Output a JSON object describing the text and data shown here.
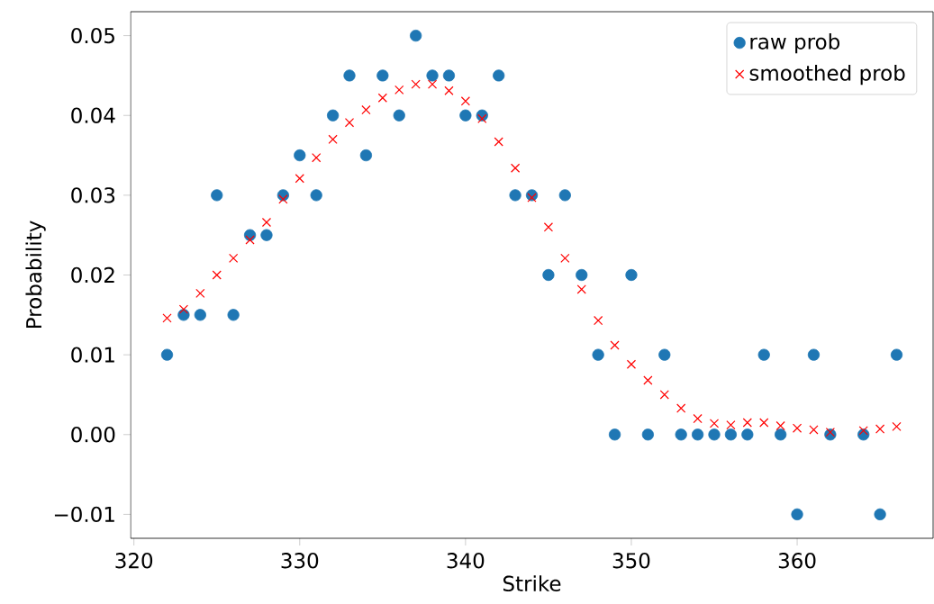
{
  "chart_data": {
    "type": "scatter",
    "xlabel": "Strike",
    "ylabel": "Probability",
    "x": [
      322,
      323,
      324,
      325,
      326,
      327,
      328,
      329,
      330,
      331,
      332,
      333,
      334,
      335,
      336,
      337,
      338,
      339,
      340,
      341,
      342,
      343,
      344,
      345,
      346,
      347,
      348,
      349,
      350,
      351,
      352,
      353,
      354,
      355,
      356,
      357,
      358,
      359,
      360,
      361,
      362,
      364,
      365,
      366
    ],
    "series": [
      {
        "name": "raw prob",
        "color": "#1f77b4",
        "marker": "circle",
        "values": [
          0.01,
          0.015,
          0.015,
          0.03,
          0.015,
          0.025,
          0.025,
          0.03,
          0.035,
          0.03,
          0.04,
          0.045,
          0.035,
          0.045,
          0.04,
          0.05,
          0.045,
          0.045,
          0.04,
          0.04,
          0.045,
          0.03,
          0.03,
          0.02,
          0.03,
          0.02,
          0.01,
          0,
          0.02,
          0,
          0.01,
          0,
          0,
          0,
          0,
          0,
          0.01,
          0,
          -0.01,
          0.01,
          0,
          0,
          -0.01,
          0.01
        ]
      },
      {
        "name": "smoothed prob",
        "color": "#ff0000",
        "marker": "cross",
        "values": [
          0.0146,
          0.0157,
          0.0177,
          0.02,
          0.0221,
          0.0244,
          0.0266,
          0.0295,
          0.0321,
          0.0347,
          0.037,
          0.0391,
          0.0407,
          0.0422,
          0.0432,
          0.0439,
          0.0439,
          0.0431,
          0.0418,
          0.0396,
          0.0367,
          0.0334,
          0.0297,
          0.026,
          0.0221,
          0.0182,
          0.0143,
          0.0112,
          0.0088,
          0.0068,
          0.005,
          0.0033,
          0.002,
          0.0014,
          0.0012,
          0.0015,
          0.0015,
          0.0011,
          0.0008,
          0.0006,
          0.0003,
          0.0005,
          0.0007,
          0.001
        ]
      }
    ],
    "xlim": [
      319.8,
      368.2
    ],
    "ylim": [
      -0.013,
      0.053
    ],
    "xticks": [
      320,
      330,
      340,
      350,
      360
    ],
    "yticks": [
      {
        "value": -0.01,
        "label": "−0.01"
      },
      {
        "value": 0,
        "label": "0.00"
      },
      {
        "value": 0.01,
        "label": "0.01"
      },
      {
        "value": 0.02,
        "label": "0.02"
      },
      {
        "value": 0.03,
        "label": "0.03"
      },
      {
        "value": 0.04,
        "label": "0.04"
      },
      {
        "value": 0.05,
        "label": "0.05"
      }
    ],
    "legend": "top right"
  }
}
